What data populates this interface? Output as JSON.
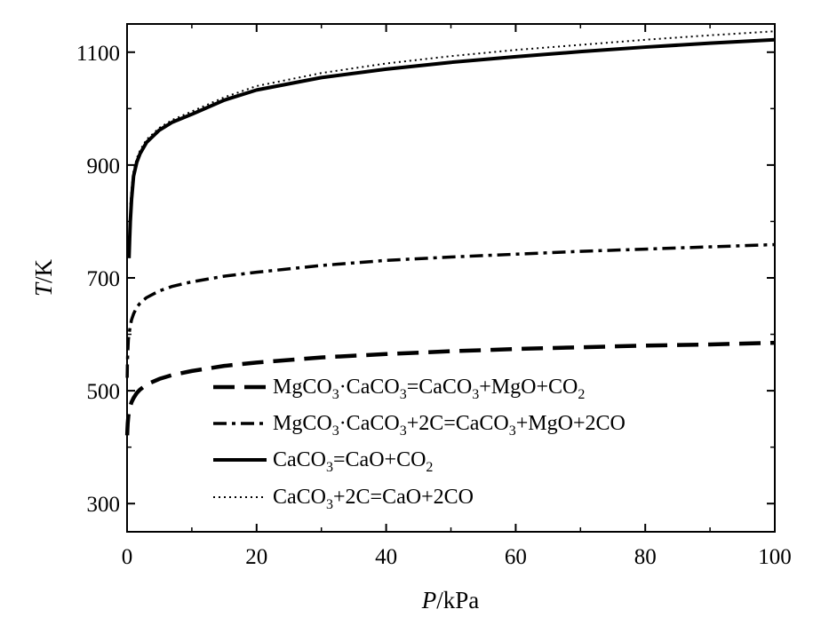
{
  "chart_data": {
    "type": "line",
    "xlabel": {
      "var": "P",
      "unit": "/kPa"
    },
    "ylabel": {
      "var": "T",
      "unit": "/K"
    },
    "xlim": [
      0,
      100
    ],
    "ylim": [
      250,
      1150
    ],
    "xticks": [
      0,
      20,
      40,
      60,
      80,
      100
    ],
    "yticks": [
      300,
      500,
      700,
      900,
      1100
    ],
    "grid": false,
    "legend_position": "bottom-center",
    "series": [
      {
        "key": "s1",
        "label": {
          "parts": [
            [
              "MgCO",
              "3",
              "·CaCO",
              "3",
              "=CaCO",
              "3",
              "+MgO+CO",
              "2"
            ]
          ]
        },
        "name_plain": "MgCO3·CaCO3=CaCO3+MgO+CO2",
        "style": "dash",
        "x": [
          0.02,
          0.05,
          0.1,
          0.2,
          0.3,
          0.5,
          0.7,
          1,
          1.5,
          2,
          3,
          5,
          7,
          10,
          15,
          20,
          30,
          40,
          50,
          60,
          70,
          80,
          90,
          100
        ],
        "y": [
          421,
          430,
          442,
          455,
          463,
          473,
          480,
          487,
          496,
          502,
          511,
          521,
          528,
          535,
          544,
          550,
          559,
          565,
          570,
          574,
          577,
          580,
          582,
          585
        ]
      },
      {
        "key": "s2",
        "label": {
          "parts": [
            [
              "MgCO",
              "3",
              "·CaCO",
              "3",
              "+2C=CaCO",
              "3",
              "+MgO+2CO"
            ]
          ]
        },
        "name_plain": "MgCO3·CaCO3+2C=CaCO3+MgO+2CO",
        "style": "dashdot",
        "x": [
          0.02,
          0.05,
          0.1,
          0.2,
          0.3,
          0.5,
          0.7,
          1,
          1.5,
          2,
          3,
          5,
          7,
          10,
          15,
          20,
          30,
          40,
          50,
          60,
          70,
          80,
          90,
          100
        ],
        "y": [
          523,
          545,
          565,
          590,
          600,
          615,
          626,
          636,
          648,
          655,
          665,
          677,
          685,
          693,
          703,
          710,
          722,
          731,
          737,
          742,
          747,
          751,
          755,
          759
        ]
      },
      {
        "key": "s3",
        "label": {
          "parts": [
            [
              "CaCO",
              "3",
              "=CaO+CO",
              "2"
            ]
          ]
        },
        "name_plain": "CaCO3=CaO+CO2",
        "style": "solid",
        "x": [
          0.3,
          0.4,
          0.5,
          0.7,
          1,
          1.5,
          2,
          3,
          5,
          7,
          10,
          15,
          20,
          30,
          40,
          50,
          60,
          70,
          80,
          90,
          100
        ],
        "y": [
          735,
          770,
          800,
          840,
          880,
          905,
          920,
          940,
          962,
          976,
          990,
          1015,
          1033,
          1055,
          1070,
          1082,
          1092,
          1101,
          1109,
          1116,
          1122
        ]
      },
      {
        "key": "s4",
        "label": {
          "parts": [
            [
              "CaCO",
              "3",
              "+2C=CaO+2CO"
            ]
          ]
        },
        "name_plain": "CaCO3+2C=CaO+2CO",
        "style": "dot",
        "x": [
          0.5,
          0.7,
          1,
          1.5,
          2,
          3,
          5,
          7,
          10,
          15,
          20,
          30,
          40,
          50,
          60,
          70,
          80,
          90,
          100
        ],
        "y": [
          830,
          860,
          890,
          912,
          926,
          945,
          966,
          980,
          995,
          1020,
          1040,
          1063,
          1080,
          1093,
          1104,
          1113,
          1122,
          1130,
          1137
        ]
      }
    ]
  }
}
